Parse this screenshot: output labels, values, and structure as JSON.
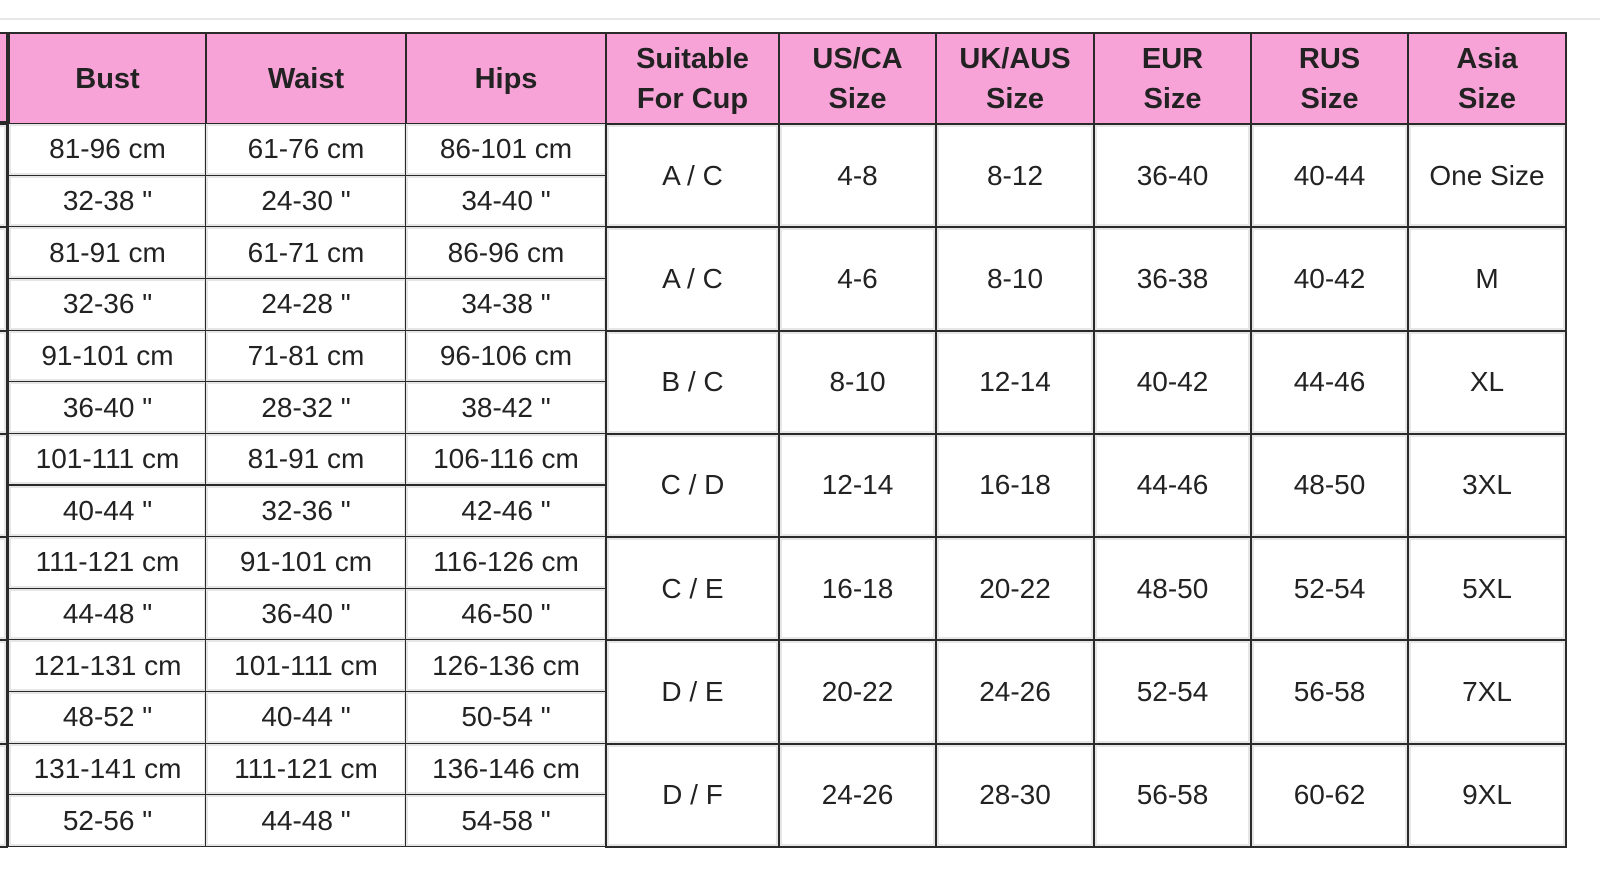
{
  "table": {
    "headers": [
      [
        "Bust"
      ],
      [
        "Waist"
      ],
      [
        "Hips"
      ],
      [
        "Suitable",
        "For Cup"
      ],
      [
        "US/CA",
        "Size"
      ],
      [
        "UK/AUS",
        "Size"
      ],
      [
        "EUR",
        "Size"
      ],
      [
        "RUS",
        "Size"
      ],
      [
        "Asia",
        "Size"
      ]
    ],
    "rows": [
      {
        "cm": [
          "81-96 cm",
          "61-76 cm",
          "86-101 cm"
        ],
        "inch": [
          "32-38 \"",
          "24-30 \"",
          "34-40 \""
        ],
        "sizes": [
          "A / C",
          "4-8",
          "8-12",
          "36-40",
          "40-44",
          "One Size"
        ]
      },
      {
        "cm": [
          "81-91 cm",
          "61-71 cm",
          "86-96 cm"
        ],
        "inch": [
          "32-36 \"",
          "24-28 \"",
          "34-38 \""
        ],
        "sizes": [
          "A / C",
          "4-6",
          "8-10",
          "36-38",
          "40-42",
          "M"
        ]
      },
      {
        "cm": [
          "91-101 cm",
          "71-81 cm",
          "96-106 cm"
        ],
        "inch": [
          "36-40 \"",
          "28-32 \"",
          "38-42 \""
        ],
        "sizes": [
          "B / C",
          "8-10",
          "12-14",
          "40-42",
          "44-46",
          "XL"
        ]
      },
      {
        "cm": [
          "101-111 cm",
          "81-91 cm",
          "106-116 cm"
        ],
        "inch": [
          "40-44 \"",
          "32-36 \"",
          "42-46 \""
        ],
        "sizes": [
          "C / D",
          "12-14",
          "16-18",
          "44-46",
          "48-50",
          "3XL"
        ]
      },
      {
        "cm": [
          "111-121 cm",
          "91-101 cm",
          "116-126 cm"
        ],
        "inch": [
          "44-48 \"",
          "36-40 \"",
          "46-50 \""
        ],
        "sizes": [
          "C / E",
          "16-18",
          "20-22",
          "48-50",
          "52-54",
          "5XL"
        ]
      },
      {
        "cm": [
          "121-131 cm",
          "101-111 cm",
          "126-136 cm"
        ],
        "inch": [
          "48-52 \"",
          "40-44 \"",
          "50-54 \""
        ],
        "sizes": [
          "D / E",
          "20-22",
          "24-26",
          "52-54",
          "56-58",
          "7XL"
        ]
      },
      {
        "cm": [
          "131-141 cm",
          "111-121 cm",
          "136-146 cm"
        ],
        "inch": [
          "52-56 \"",
          "44-48 \"",
          "54-58 \""
        ],
        "sizes": [
          "D / F",
          "24-26",
          "28-30",
          "56-58",
          "60-62",
          "9XL"
        ]
      }
    ]
  }
}
